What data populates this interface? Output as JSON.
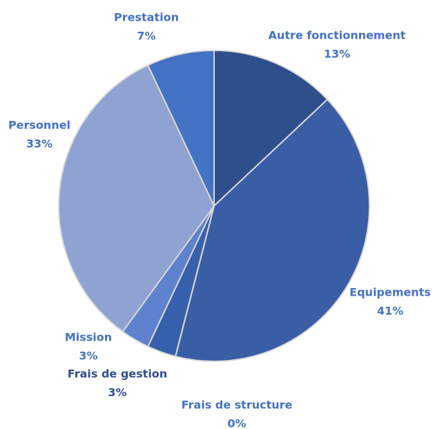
{
  "chart_data": {
    "type": "pie",
    "categories": [
      "Autre fonctionnement",
      "Equipements",
      "Frais de structure",
      "Frais de gestion",
      "Mission",
      "Personnel",
      "Prestation"
    ],
    "values": [
      13,
      41,
      0,
      3,
      3,
      33,
      7
    ],
    "value_labels": [
      "13%",
      "41%",
      "0%",
      "3%",
      "3%",
      "33%",
      "7%"
    ],
    "colors": [
      "#2f4f8c",
      "#3a5ea6",
      "#3a5ea6",
      "#3760ac",
      "#5f82cf",
      "#8fa3d3",
      "#4472c4"
    ],
    "label_colors": [
      "#4472c4",
      "#4472c4",
      "#4472c4",
      "#2f4f8c",
      "#4472c4",
      "#4472c4",
      "#4472c4"
    ]
  }
}
